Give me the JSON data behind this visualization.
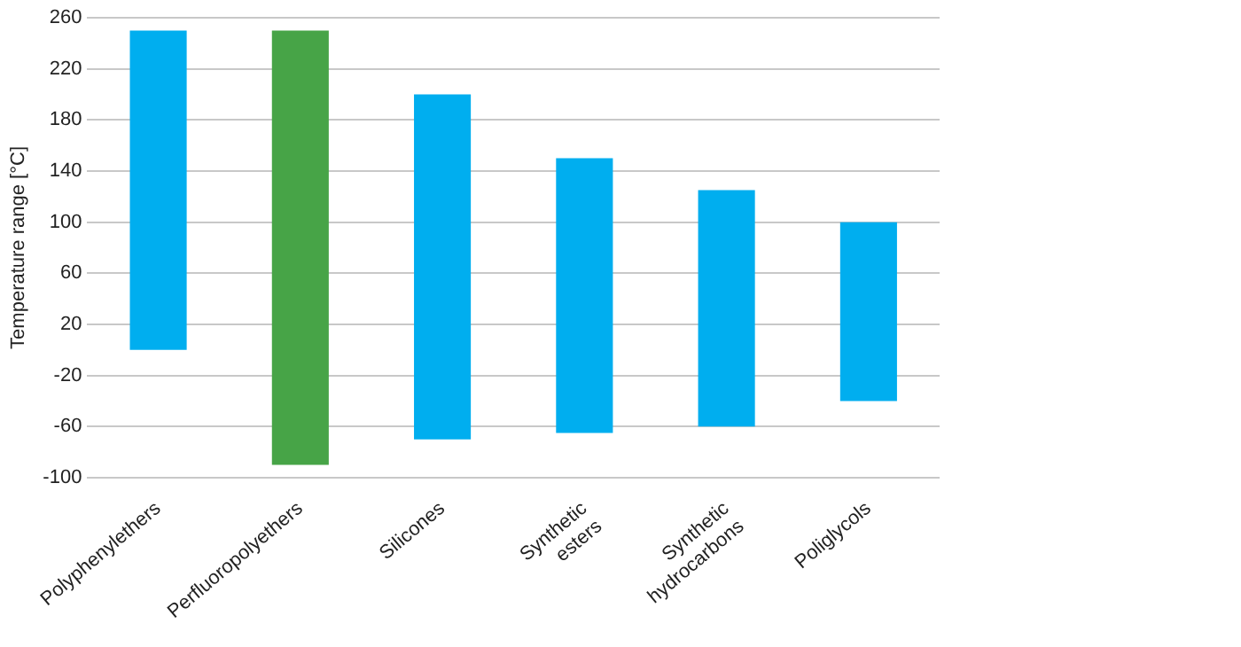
{
  "chart_data": {
    "type": "bar",
    "ylabel": "Temperature range [°C]",
    "categories": [
      "Polyphenylethers",
      "Perfluoropolyethers",
      "Silicones",
      "Synthetic esters",
      "Synthetic hydrocarbons",
      "Poliglycols"
    ],
    "base": [
      0,
      -90,
      -70,
      -65,
      -60,
      -40
    ],
    "values": [
      250,
      340,
      270,
      215,
      185,
      140
    ],
    "colors": [
      "#00aeef",
      "#47a447",
      "#00aeef",
      "#00aeef",
      "#00aeef",
      "#00aeef"
    ],
    "ylim": [
      -100,
      260
    ],
    "yticks": [
      -100,
      -60,
      -20,
      20,
      60,
      100,
      140,
      180,
      220,
      260
    ],
    "grid": "y"
  }
}
